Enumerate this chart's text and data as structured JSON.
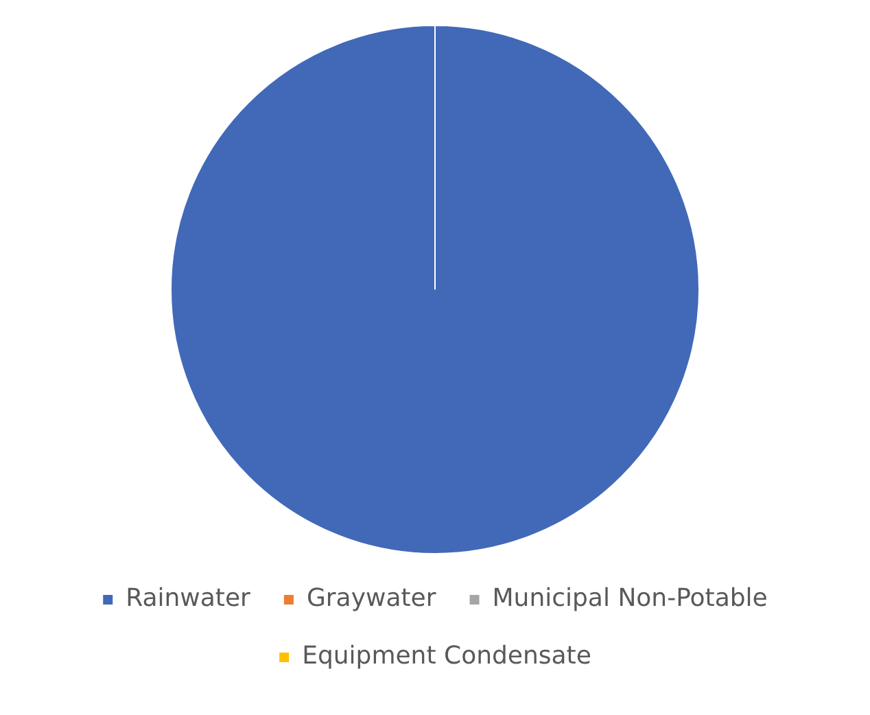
{
  "chart_data": {
    "type": "pie",
    "categories": [
      "Rainwater",
      "Graywater",
      "Municipal Non-Potable",
      "Equipment Condensate"
    ],
    "values": [
      100,
      0,
      0,
      0
    ],
    "colors": [
      "#4169b8",
      "#ed7d31",
      "#a5a5a5",
      "#ffc000"
    ],
    "legend": "bottom"
  }
}
